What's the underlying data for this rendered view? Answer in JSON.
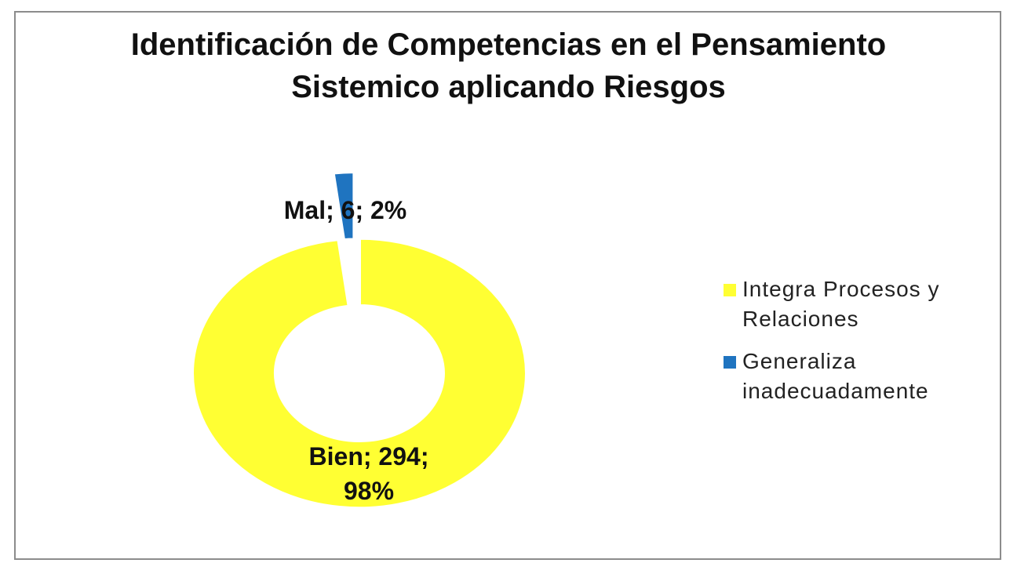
{
  "chart_data": {
    "type": "pie",
    "title": "Identificación de Competencias en el Pensamiento Sistemico aplicando Riesgos",
    "categories": [
      "Integra Procesos y Relaciones",
      "Generaliza inadecuadamente"
    ],
    "values": [
      294,
      6
    ],
    "value_labels": [
      "Bien; 294; 98%",
      "Mal; 6; 2%"
    ],
    "colors": [
      "#ffff33",
      "#1f74c0"
    ],
    "legend": "right"
  }
}
